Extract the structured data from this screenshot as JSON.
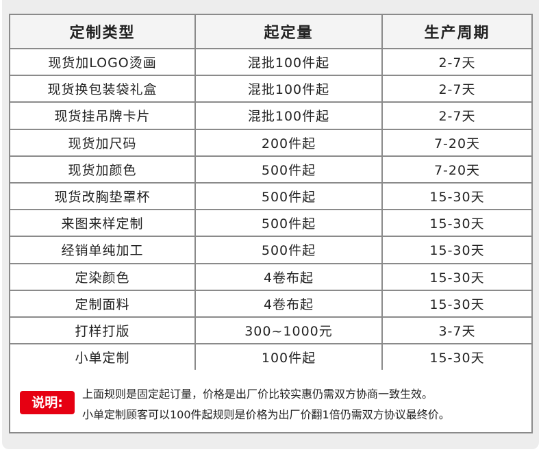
{
  "headers": [
    "定制类型",
    "起定量",
    "生产周期"
  ],
  "rows": [
    [
      "现货加LOGO烫画",
      "混批100件起",
      "2-7天"
    ],
    [
      "现货换包装袋礼盒",
      "混批100件起",
      "2-7天"
    ],
    [
      "现货挂吊牌卡片",
      "混批100件起",
      "2-7天"
    ],
    [
      "现货加尺码",
      "200件起",
      "7-20天"
    ],
    [
      "现货加颜色",
      "500件起",
      "7-20天"
    ],
    [
      "现货改胸垫罩杯",
      "500件起",
      "15-30天"
    ],
    [
      "来图来样定制",
      "500件起",
      "15-30天"
    ],
    [
      "经销单纯加工",
      "500件起",
      "15-30天"
    ],
    [
      "定染颜色",
      "4卷布起",
      "15-30天"
    ],
    [
      "定制面料",
      "4卷布起",
      "15-30天"
    ],
    [
      "打样打版",
      "300~1000元",
      "3-7天"
    ],
    [
      "小单定制",
      "100件起",
      "15-30天"
    ]
  ],
  "note": {
    "badge": "说明:",
    "line1": "上面规则是固定起订量，价格是出厂价比较实惠仍需双方协商一致生效。",
    "line2": "小单定制顾客可以100件起规则是价格为出厂价翻1倍仍需双方协议最终价。"
  }
}
